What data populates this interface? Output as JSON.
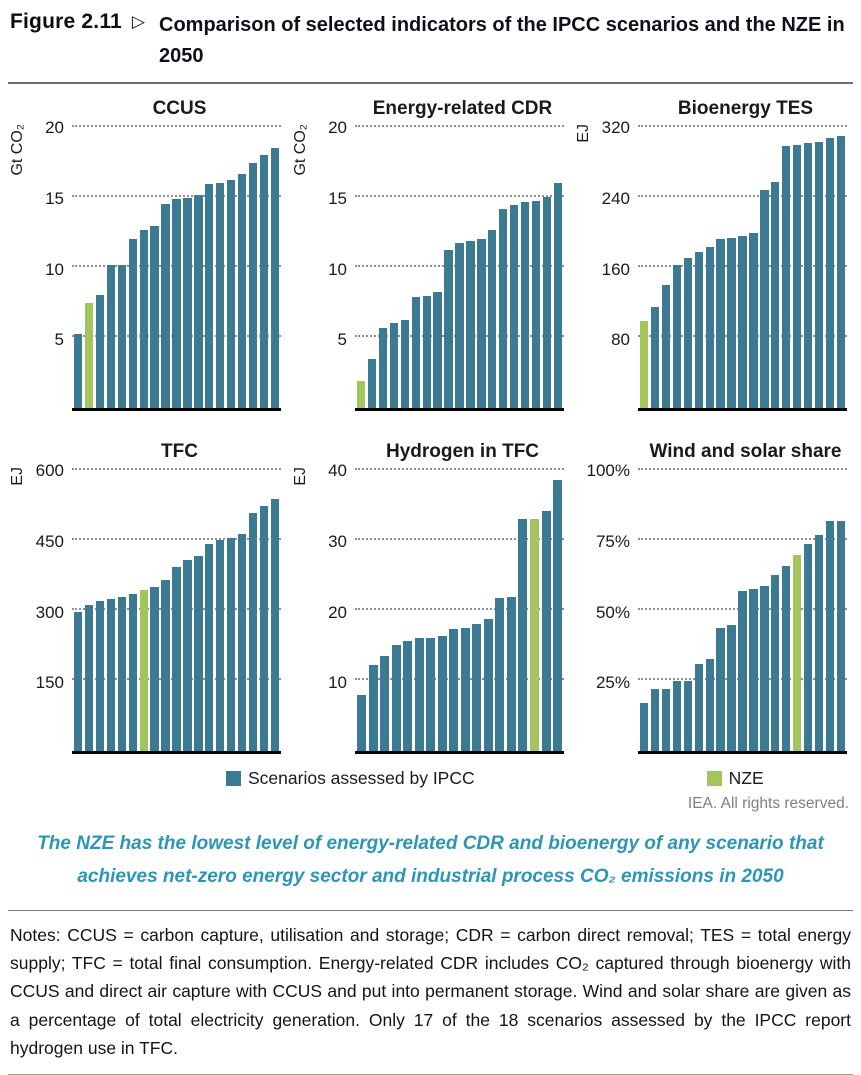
{
  "figure": {
    "label": "Figure 2.11",
    "pointer": "▷",
    "title": "Comparison of selected indicators of the IPCC scenarios and the NZE in 2050"
  },
  "legend": {
    "ipcc_label": "Scenarios assessed by IPCC",
    "nze_label": "NZE",
    "ipcc_color": "#3B7A92",
    "nze_color": "#A4C45E",
    "accent_color": "#2D95B5"
  },
  "credit": "IEA. All rights reserved.",
  "caption": "The NZE has the lowest level of energy-related CDR and bioenergy of any scenario that achieves net-zero energy sector and industrial process CO₂ emissions in 2050",
  "notes": "Notes: CCUS = carbon capture, utilisation and storage; CDR = carbon direct removal; TES = total energy supply; TFC = total final consumption. Energy-related CDR includes CO₂ captured through bioenergy with CCUS and direct air capture with CCUS and put into permanent storage. Wind and solar share are given as a percentage of total electricity generation. Only 17 of the 18 scenarios assessed by the IPCC report hydrogen use in TFC.",
  "chart_data": [
    {
      "type": "bar",
      "title": "CCUS",
      "ylabel": "Gt CO₂",
      "axis_max": 20,
      "ticks": [
        5,
        10,
        15,
        20
      ],
      "tick_labels": [
        "5",
        "10",
        "15",
        "20"
      ],
      "nze_index": 1,
      "legend_note": "bars sorted ascending; green bar = NZE, teal bars = scenarios assessed by IPCC",
      "values": [
        5.3,
        7.5,
        8.1,
        10.2,
        10.2,
        12.1,
        12.7,
        13.0,
        14.6,
        14.9,
        15.0,
        15.2,
        16.0,
        16.1,
        16.3,
        16.7,
        17.5,
        18.1,
        18.6
      ]
    },
    {
      "type": "bar",
      "title": "Energy-related CDR",
      "ylabel": "Gt CO₂",
      "axis_max": 20,
      "ticks": [
        5,
        10,
        15,
        20
      ],
      "tick_labels": [
        "5",
        "10",
        "15",
        "20"
      ],
      "nze_index": 0,
      "legend_note": "green bar = NZE (lowest)",
      "values": [
        1.9,
        3.5,
        5.7,
        6.1,
        6.3,
        7.9,
        8.0,
        8.3,
        11.3,
        11.8,
        11.9,
        12.1,
        12.7,
        14.2,
        14.5,
        14.7,
        14.8,
        15.1,
        16.1
      ]
    },
    {
      "type": "bar",
      "title": "Bioenergy TES",
      "ylabel": "EJ",
      "axis_max": 320,
      "ticks": [
        80,
        160,
        240,
        320
      ],
      "tick_labels": [
        "80",
        "160",
        "240",
        "320"
      ],
      "nze_index": 0,
      "legend_note": "green bar = NZE (lowest)",
      "values": [
        100,
        116,
        141,
        163,
        172,
        178,
        184,
        193,
        194,
        197,
        200,
        249,
        258,
        300,
        301,
        303,
        304,
        309,
        311
      ]
    },
    {
      "type": "bar",
      "title": "TFC",
      "ylabel": "EJ",
      "axis_max": 600,
      "ticks": [
        150,
        300,
        450,
        600
      ],
      "tick_labels": [
        "150",
        "300",
        "450",
        "600"
      ],
      "nze_index": 6,
      "legend_note": "green bar = NZE",
      "values": [
        297,
        313,
        322,
        326,
        331,
        336,
        344,
        352,
        366,
        394,
        410,
        418,
        444,
        452,
        456,
        466,
        510,
        525,
        540
      ]
    },
    {
      "type": "bar",
      "title": "Hydrogen in TFC",
      "ylabel": "EJ",
      "axis_max": 40,
      "ticks": [
        10,
        20,
        30,
        40
      ],
      "tick_labels": [
        "10",
        "20",
        "30",
        "40"
      ],
      "nze_index": 15,
      "legend_note": "only 17 IPCC scenarios + NZE (18 bars); green bar = NZE",
      "values": [
        8.0,
        12.3,
        13.6,
        15.2,
        15.7,
        16.1,
        16.2,
        16.5,
        17.5,
        17.6,
        18.2,
        18.8,
        21.8,
        22.0,
        33.1,
        33.1,
        34.3,
        38.7
      ]
    },
    {
      "type": "bar",
      "title": "Wind and solar share",
      "ylabel": "",
      "axis_max": 100,
      "ticks": [
        25,
        50,
        75,
        100
      ],
      "tick_labels": [
        "25%",
        "50%",
        "75%",
        "100%"
      ],
      "nze_index": 14,
      "legend_note": "share of total electricity generation; green bar = NZE",
      "values": [
        17,
        22,
        22,
        25,
        25,
        31,
        33,
        44,
        45,
        57,
        58,
        59,
        63,
        66,
        70,
        74,
        77,
        82,
        82
      ]
    }
  ]
}
